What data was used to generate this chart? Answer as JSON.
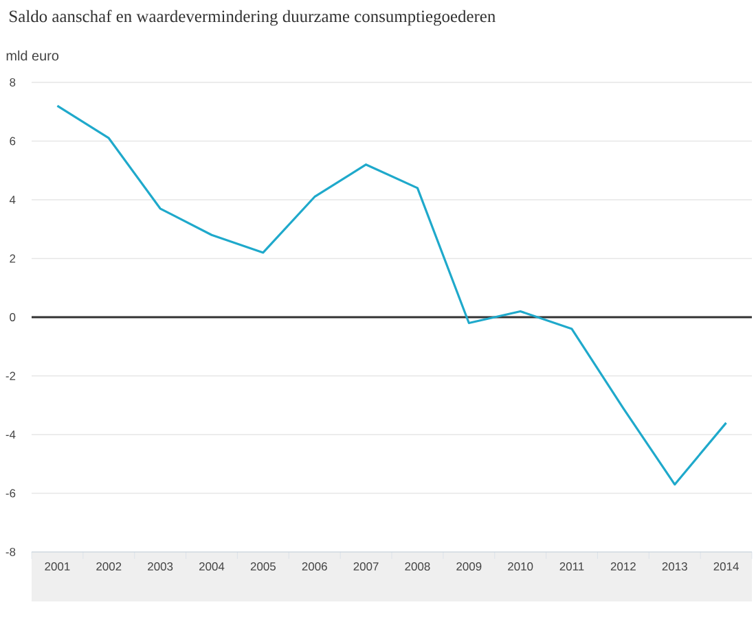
{
  "chart_data": {
    "type": "line",
    "title": "Saldo aanschaf en waardevermindering duurzame consumptiegoederen",
    "ylabel": "mld euro",
    "categories": [
      "2001",
      "2002",
      "2003",
      "2004",
      "2005",
      "2006",
      "2007",
      "2008",
      "2009",
      "2010",
      "2011",
      "2012",
      "2013",
      "2014"
    ],
    "values": [
      7.2,
      6.1,
      3.7,
      2.8,
      2.2,
      4.1,
      5.2,
      4.4,
      -0.2,
      0.2,
      -0.4,
      -3.1,
      -5.7,
      -3.6
    ],
    "color": "#1fa9cb",
    "ylim": [
      -8,
      8
    ],
    "yticks": [
      -8,
      -6,
      -4,
      -2,
      0,
      2,
      4,
      6,
      8
    ],
    "grid": "y",
    "marker": "none",
    "ref_lines": [
      {
        "axis": "y",
        "value": 0,
        "color": "#333333"
      }
    ]
  }
}
